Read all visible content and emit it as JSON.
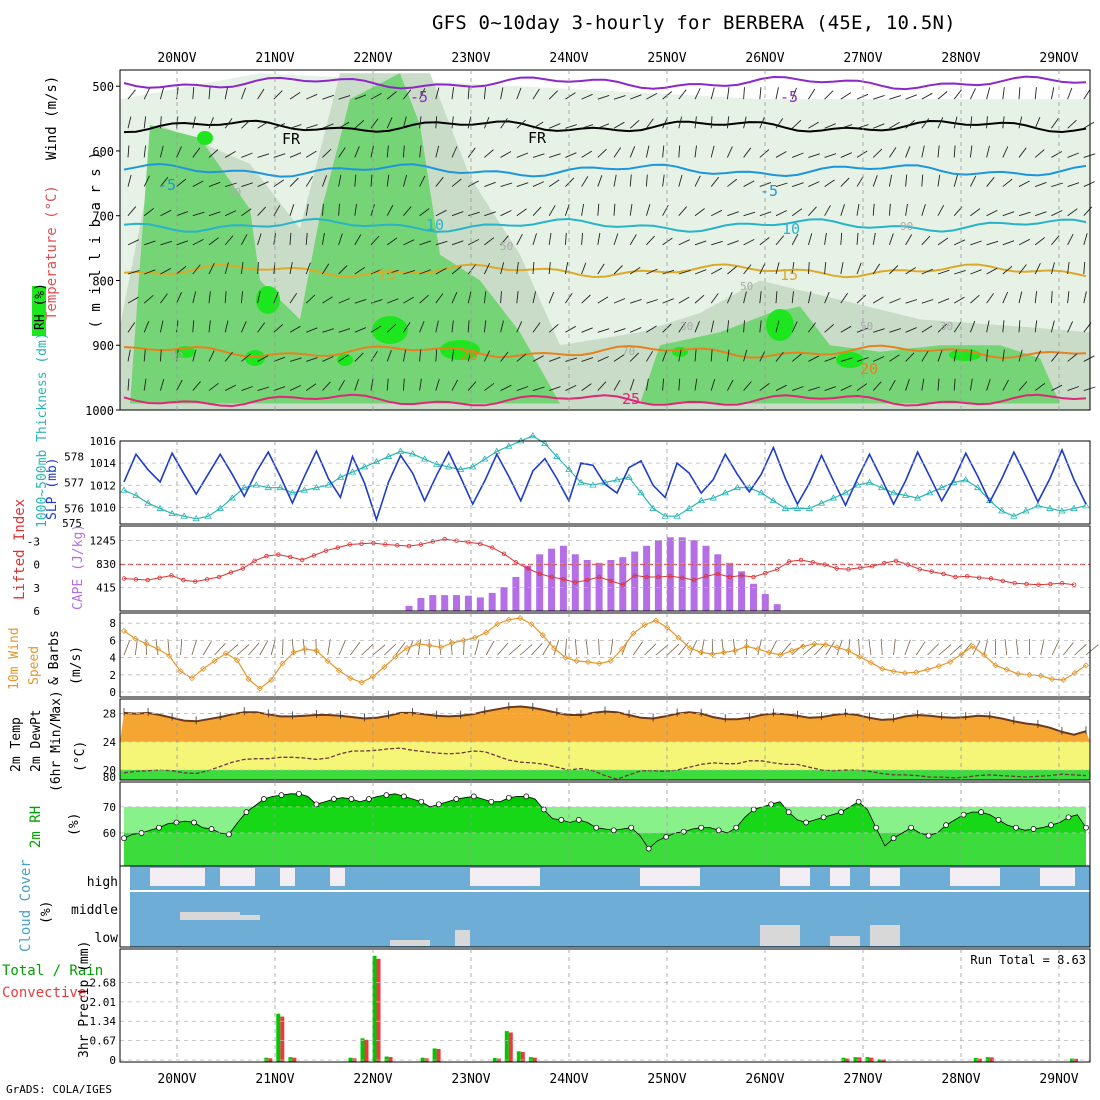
{
  "title": "GFS 0~10day 3-hourly for BERBERA (45E, 10.5N)",
  "credit": "GrADS: COLA/IGES",
  "run_total": "Run Total = 8.63",
  "colors": {
    "rh_fill": [
      "#e6f2e6",
      "#c8dcc8",
      "#75d475",
      "#1ee61e"
    ],
    "temp_isotherms": "#00b4dc",
    "freezing": "#000000",
    "slp": "#1e3cc8",
    "thickness": "#2ab4b4",
    "cape": "#b46ee6",
    "lifted_index": "#dc3232",
    "wind_speed": "#e69628",
    "rain_total": "#00c800",
    "rain_convective": "#e63c3c",
    "cloud": "#6eaed6",
    "temp_fill": "#f5a532",
    "dewpt_fill": "#f5f578",
    "rh2m_fill": "#3cdc3c"
  },
  "chart_data": [
    {
      "type": "heatmap",
      "id": "upper-air",
      "ylabel": "( m i l l i b a r s )",
      "legend_labels": [
        "RH (%)",
        "Temperature (°C)",
        "Wind (m/s)"
      ],
      "yticks": [
        500,
        600,
        700,
        800,
        900,
        1000
      ],
      "ylim": [
        1000,
        475
      ],
      "x_ticks": [
        "20NOV",
        "21NOV",
        "22NOV",
        "23NOV",
        "24NOV",
        "25NOV",
        "26NOV",
        "27NOV",
        "28NOV",
        "29NOV"
      ],
      "isotherms": [
        {
          "name": "-5",
          "color": "#8c28c8",
          "level": 495
        },
        {
          "name": "FR",
          "color": "#000000",
          "level": 562
        },
        {
          "name": "-5",
          "color": "#1e96dc",
          "level": 630
        },
        {
          "name": "10",
          "color": "#28b4c8",
          "level": 715
        },
        {
          "name": "15",
          "color": "#dcaa28",
          "level": 785
        },
        {
          "name": "20",
          "color": "#e6821e",
          "level": 910
        },
        {
          "name": "25",
          "color": "#dc2878",
          "level": 985
        }
      ],
      "contour_labels": [
        "-5",
        "-5",
        "FR",
        "FR",
        "-5",
        "-5",
        "10",
        "10",
        "15",
        "15",
        "20",
        "20",
        "25"
      ],
      "rh_labels": [
        "50",
        "30",
        "50",
        "30",
        "50",
        "30",
        "50",
        "70",
        "90"
      ]
    },
    {
      "type": "line",
      "id": "slp-thickness",
      "series": [
        {
          "name": "SLP (mb)",
          "axis": "right",
          "values": [
            1012.3,
            1014.8,
            1013.4,
            1012.3,
            1014.9,
            1013.0,
            1011.2,
            1013.0,
            1014.8,
            1013.0,
            1011.0,
            1013.2,
            1015.0,
            1012.8,
            1010.4,
            1012.8,
            1015.1,
            1012.6,
            1010.9,
            1014.6,
            1012.2,
            1008.9,
            1012.3,
            1014.7,
            1013.1,
            1010.6,
            1012.9,
            1015.0,
            1012.7,
            1010.3,
            1012.4,
            1014.8,
            1012.8,
            1010.6,
            1013.3,
            1014.4,
            1012.6,
            1010.6,
            1014.0,
            1013.8,
            1012.1,
            1011.3,
            1013.6,
            1014.2,
            1012.0,
            1010.9,
            1014.0,
            1013.1,
            1011.3,
            1012.5,
            1014.8,
            1013.0,
            1011.4,
            1013.0,
            1015.4,
            1012.6,
            1010.3,
            1012.2,
            1014.7,
            1012.4,
            1010.2,
            1012.6,
            1014.8,
            1012.6,
            1010.3,
            1012.4,
            1015.0,
            1012.8,
            1010.6,
            1012.5,
            1014.9,
            1012.8,
            1010.5,
            1012.6,
            1015.0,
            1012.8,
            1010.5,
            1012.6,
            1015.2,
            1012.5,
            1010.3
          ]
        },
        {
          "name": "1000-500mb Thickness (dm)",
          "axis": "left",
          "values": [
            576.7,
            576.5,
            576.2,
            576.0,
            575.8,
            575.7,
            575.6,
            575.7,
            576.0,
            576.4,
            576.8,
            576.9,
            576.8,
            576.8,
            576.6,
            576.7,
            576.8,
            576.9,
            577.2,
            577.4,
            577.6,
            577.8,
            578.0,
            578.2,
            578.1,
            577.9,
            577.7,
            577.6,
            577.5,
            577.6,
            577.9,
            578.2,
            578.4,
            578.6,
            578.8,
            578.5,
            578.0,
            577.5,
            577.0,
            576.9,
            577.0,
            577.1,
            577.2,
            576.6,
            576.0,
            575.7,
            575.7,
            576.0,
            576.3,
            576.4,
            576.6,
            576.8,
            576.8,
            576.6,
            576.3,
            576.0,
            576.0,
            576.0,
            576.2,
            576.4,
            576.6,
            576.9,
            577.0,
            576.8,
            576.6,
            576.5,
            576.4,
            576.6,
            576.8,
            577.0,
            577.1,
            576.8,
            576.3,
            575.9,
            575.7,
            575.9,
            576.1,
            576.0,
            575.9,
            576.0,
            576.1
          ]
        }
      ],
      "left_yticks": [
        576,
        577,
        578
      ],
      "right_yticks": [
        1010,
        1012,
        1014,
        1016
      ],
      "ylabel_left": "1000~500mb Thickness (dm)",
      "ylabel_right": "SLP (mb)"
    },
    {
      "type": "bar",
      "id": "cape-li",
      "series": [
        {
          "name": "CAPE (J/kg)",
          "values": [
            0,
            0,
            0,
            0,
            0,
            0,
            0,
            0,
            0,
            0,
            0,
            0,
            0,
            0,
            0,
            0,
            0,
            0,
            0,
            0,
            0,
            0,
            0,
            0,
            90,
            230,
            280,
            280,
            280,
            270,
            240,
            320,
            420,
            600,
            800,
            1000,
            1100,
            1150,
            1000,
            900,
            850,
            900,
            950,
            1050,
            1150,
            1250,
            1300,
            1300,
            1250,
            1150,
            1000,
            850,
            700,
            480,
            300,
            120,
            0,
            0,
            0,
            0,
            0,
            0,
            0,
            0,
            0,
            0,
            0,
            0,
            0,
            0,
            0,
            0,
            0,
            0,
            0,
            0,
            0,
            0,
            0,
            0,
            0,
            0
          ]
        },
        {
          "name": "Lifted Index",
          "values": [
            1.8,
            1.9,
            2.0,
            1.7,
            1.4,
            2.0,
            2.2,
            1.9,
            1.6,
            1.0,
            0.5,
            -0.5,
            -1.1,
            -1.3,
            -1.0,
            -0.6,
            -1.2,
            -1.8,
            -2.2,
            -2.6,
            -2.7,
            -2.8,
            -2.6,
            -2.5,
            -2.4,
            -2.6,
            -3.0,
            -3.3,
            -3.1,
            -2.9,
            -2.7,
            -2.2,
            -1.4,
            -0.3,
            0.5,
            1.2,
            1.6,
            1.9,
            2.3,
            2.0,
            1.6,
            2.1,
            2.6,
            1.4,
            1.6,
            1.6,
            1.5,
            1.7,
            2.0,
            1.5,
            1.2,
            1.6,
            1.4,
            1.6,
            1.1,
            0.6,
            -0.4,
            -0.6,
            -0.3,
            0.0,
            0.5,
            0.6,
            0.4,
            0.2,
            -0.2,
            -0.5,
            0.0,
            0.6,
            0.9,
            1.2,
            1.6,
            1.5,
            1.7,
            1.8,
            2.1,
            2.4,
            2.5,
            2.6,
            2.5,
            2.4,
            2.6
          ]
        }
      ],
      "cape_yticks": [
        415,
        830,
        1245
      ],
      "li_yticks": [
        -3,
        0,
        3,
        6
      ],
      "ylabel_left": "Lifted Index",
      "ylabel_right": "CAPE (J/kg)"
    },
    {
      "type": "line",
      "id": "wind10m",
      "series": [
        {
          "name": "10m Wind Speed & Barbs (m/s)",
          "values": [
            7.1,
            6.2,
            5.6,
            5.0,
            4.2,
            2.4,
            1.6,
            2.7,
            3.6,
            4.5,
            3.7,
            1.5,
            0.4,
            1.4,
            3.3,
            4.6,
            5.0,
            4.8,
            3.6,
            2.5,
            1.6,
            1.1,
            1.8,
            2.9,
            4.1,
            5.1,
            5.6,
            5.4,
            5.2,
            5.7,
            6.0,
            6.3,
            6.9,
            7.9,
            8.4,
            8.6,
            7.9,
            6.6,
            5.1,
            4.0,
            3.6,
            3.5,
            3.3,
            3.6,
            5.0,
            6.8,
            7.8,
            8.3,
            7.5,
            6.3,
            5.1,
            4.6,
            4.4,
            4.6,
            4.8,
            5.3,
            5.0,
            4.6,
            4.3,
            4.8,
            5.3,
            5.6,
            5.5,
            5.2,
            4.8,
            4.1,
            3.4,
            2.7,
            2.4,
            2.2,
            2.3,
            2.6,
            3.0,
            3.5,
            4.4,
            5.3,
            4.3,
            3.1,
            2.6,
            2.1,
            2.0,
            1.9,
            1.5,
            1.4,
            2.2,
            3.1
          ]
        }
      ],
      "yticks": [
        0,
        2,
        4,
        6,
        8
      ],
      "ylabel": [
        "10m Wind",
        "Speed",
        "& Barbs",
        "(m/s)"
      ]
    },
    {
      "type": "area",
      "id": "temp2m",
      "series": [
        {
          "name": "2m Temp",
          "values": [
            28.1,
            28.0,
            28.1,
            27.8,
            27.4,
            27.0,
            26.9,
            27.2,
            27.5,
            27.9,
            28.2,
            28.2,
            27.9,
            27.6,
            27.6,
            27.7,
            27.8,
            27.8,
            27.7,
            27.5,
            27.3,
            27.4,
            27.7,
            28.1,
            28.1,
            27.9,
            27.7,
            27.6,
            27.7,
            27.9,
            28.3,
            28.6,
            28.9,
            29.0,
            28.8,
            28.5,
            28.1,
            27.8,
            27.8,
            28.1,
            28.3,
            28.2,
            27.8,
            27.4,
            27.3,
            27.6,
            28.0,
            28.2,
            28.0,
            27.5,
            27.2,
            27.2,
            27.4,
            27.8,
            28.0,
            27.9,
            27.7,
            27.4,
            27.5,
            27.8,
            28.0,
            27.8,
            27.4,
            27.1,
            27.2,
            27.6,
            27.8,
            27.7,
            27.5,
            27.4,
            27.5,
            27.7,
            27.6,
            27.3,
            26.9,
            26.6,
            26.4,
            26.0,
            25.4,
            25.0,
            25.5
          ]
        },
        {
          "name": "2m DewPt",
          "values": [
            19.6,
            19.8,
            19.9,
            20.0,
            19.9,
            19.6,
            19.5,
            19.9,
            20.5,
            21.1,
            21.5,
            21.6,
            21.6,
            21.8,
            21.8,
            21.7,
            21.5,
            21.7,
            22.3,
            22.7,
            22.7,
            22.8,
            23.0,
            23.1,
            22.8,
            22.6,
            22.4,
            22.3,
            22.4,
            22.7,
            22.6,
            22.0,
            21.4,
            21.1,
            21.0,
            20.8,
            20.4,
            20.0,
            20.2,
            19.9,
            19.2,
            18.7,
            19.3,
            19.9,
            19.9,
            19.8,
            20.0,
            20.4,
            20.8,
            21.0,
            20.9,
            20.9,
            21.3,
            21.3,
            21.0,
            20.8,
            20.8,
            20.4,
            20.0,
            19.9,
            20.0,
            20.0,
            19.8,
            19.5,
            19.3,
            19.3,
            19.2,
            19.0,
            19.0,
            18.9,
            19.0,
            19.2,
            19.3,
            19.2,
            19.1,
            19.0,
            19.1,
            19.2,
            19.4,
            19.3,
            19.2
          ]
        }
      ],
      "yticks": [
        20,
        24,
        28
      ],
      "extra_tick": "80",
      "ylabel": [
        "2m Temp",
        "2m DewPt",
        "(6hr Min/Max)",
        "(°C)"
      ]
    },
    {
      "type": "area",
      "id": "rh2m",
      "series": [
        {
          "name": "2m RH",
          "values": [
            58,
            59.5,
            60,
            61,
            62,
            63.5,
            64,
            64.5,
            64,
            62,
            61.5,
            60,
            59.5,
            64,
            68,
            70.5,
            73,
            74,
            74.5,
            75,
            75,
            74,
            71,
            72,
            73,
            73.5,
            73,
            72,
            73,
            74,
            74.5,
            75,
            74,
            73,
            72,
            70,
            71,
            72,
            73,
            73.5,
            74,
            73,
            72,
            72,
            73.5,
            74,
            74,
            73,
            69,
            65.5,
            65,
            64,
            65,
            64,
            62,
            61.5,
            61,
            61.5,
            62,
            59,
            54,
            57,
            58.5,
            60,
            60.5,
            61.5,
            62,
            62,
            61,
            60,
            62,
            66,
            69,
            70,
            71,
            72,
            68,
            65,
            64,
            65,
            66,
            67,
            68,
            70,
            72,
            69,
            62,
            55,
            58,
            60,
            62,
            60,
            59,
            60,
            63,
            65,
            67,
            68,
            68,
            67,
            65,
            63,
            62,
            61,
            61.5,
            62,
            63,
            64,
            66,
            67,
            62
          ]
        }
      ],
      "yticks": [
        60,
        70
      ],
      "ylabel": "2m RH"
    },
    {
      "type": "bar",
      "id": "cloud",
      "tick_labels": [
        "high",
        "middle",
        "low"
      ],
      "ylabel": [
        "Cloud Cover",
        "(%)"
      ]
    },
    {
      "type": "bar",
      "id": "precip",
      "series": [
        {
          "name": "Total / Rain",
          "values": [
            0,
            0,
            0,
            0,
            0,
            0,
            0,
            0,
            0,
            0,
            0,
            0,
            0.08,
            1.6,
            0.1,
            0,
            0,
            0,
            0,
            0.08,
            0.75,
            3.6,
            0.12,
            0,
            0,
            0.08,
            0.4,
            0,
            0,
            0,
            0,
            0.07,
            1.0,
            0.3,
            0.1,
            0,
            0,
            0,
            0,
            0,
            0,
            0,
            0,
            0,
            0,
            0,
            0,
            0,
            0,
            0,
            0,
            0,
            0,
            0,
            0,
            0,
            0,
            0,
            0,
            0,
            0.08,
            0.1,
            0.1,
            0.02,
            0,
            0,
            0,
            0,
            0,
            0,
            0,
            0.07,
            0.1,
            0,
            0,
            0,
            0,
            0,
            0,
            0.05,
            0
          ]
        },
        {
          "name": "Convective",
          "values": [
            0,
            0,
            0,
            0,
            0,
            0,
            0,
            0,
            0,
            0,
            0,
            0,
            0.06,
            1.5,
            0.08,
            0,
            0,
            0,
            0,
            0.06,
            0.7,
            3.5,
            0.1,
            0,
            0,
            0.06,
            0.38,
            0,
            0,
            0,
            0,
            0.05,
            0.95,
            0.28,
            0.08,
            0,
            0,
            0,
            0,
            0,
            0,
            0,
            0,
            0,
            0,
            0,
            0,
            0,
            0,
            0,
            0,
            0,
            0,
            0,
            0,
            0,
            0.03,
            0,
            0,
            0,
            0.05,
            0.09,
            0.08,
            0.02,
            0,
            0,
            0,
            0,
            0,
            0,
            0,
            0.05,
            0.09,
            0.03,
            0,
            0,
            0,
            0,
            0,
            0.04,
            0
          ]
        }
      ],
      "yticks": [
        "0",
        "0.67",
        "1.34",
        "2.01",
        "2.68"
      ],
      "ylabel_left": "3hr Precip (mm)",
      "legend": [
        "Total / Rain",
        "Convective"
      ]
    }
  ]
}
